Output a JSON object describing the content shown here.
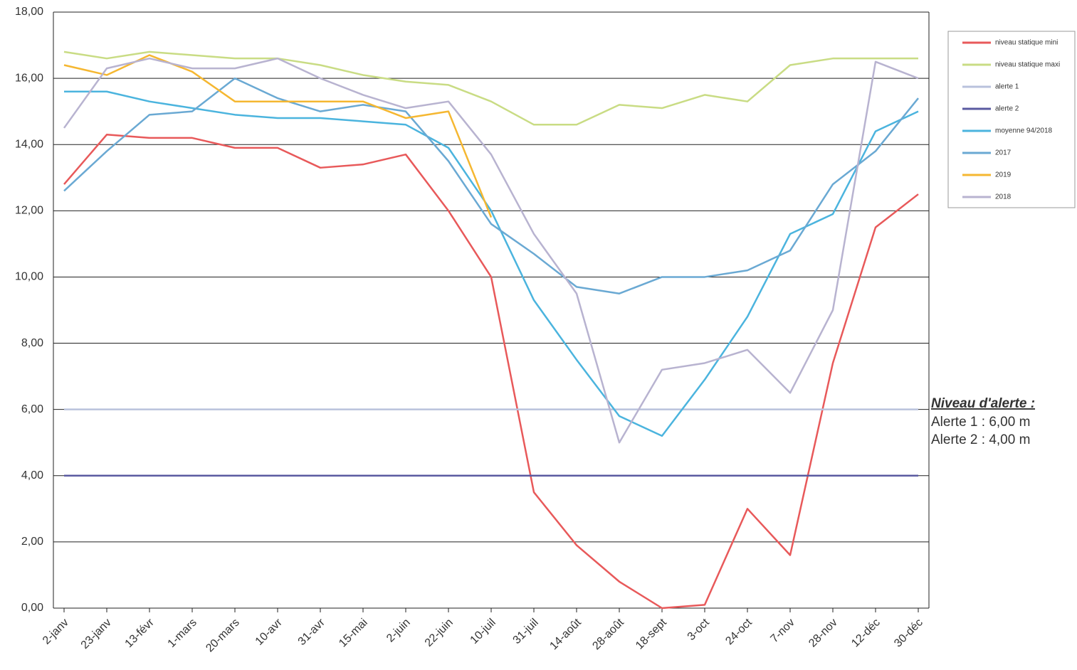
{
  "chart_data": {
    "type": "line",
    "categories": [
      "2-janv",
      "23-janv",
      "13-févr",
      "1-mars",
      "20-mars",
      "10-avr",
      "31-avr",
      "15-mai",
      "2-juin",
      "22-juin",
      "10-juil",
      "31-juil",
      "14-août",
      "28-août",
      "18-sept",
      "3-oct",
      "24-oct",
      "7-nov",
      "28-nov",
      "12-déc",
      "30-déc"
    ],
    "series": [
      {
        "name": "niveau statique mini",
        "color": "#e8595a",
        "values": [
          12.8,
          14.3,
          14.2,
          14.2,
          13.9,
          13.9,
          13.3,
          13.4,
          13.7,
          12.0,
          10.0,
          3.5,
          1.9,
          0.8,
          0.0,
          0.1,
          3.0,
          1.6,
          7.4,
          11.5,
          12.5
        ]
      },
      {
        "name": "niveau statique maxi",
        "color": "#c9dc84",
        "values": [
          16.8,
          16.6,
          16.8,
          16.7,
          16.6,
          16.6,
          16.4,
          16.1,
          15.9,
          15.8,
          15.3,
          14.6,
          14.6,
          15.2,
          15.1,
          15.5,
          15.3,
          16.4,
          16.6,
          16.6,
          16.6
        ]
      },
      {
        "name": "alerte 1",
        "color": "#b9c2dc",
        "values": [
          6,
          6,
          6,
          6,
          6,
          6,
          6,
          6,
          6,
          6,
          6,
          6,
          6,
          6,
          6,
          6,
          6,
          6,
          6,
          6,
          6
        ]
      },
      {
        "name": "alerte 2",
        "color": "#5a5aa0",
        "values": [
          4,
          4,
          4,
          4,
          4,
          4,
          4,
          4,
          4,
          4,
          4,
          4,
          4,
          4,
          4,
          4,
          4,
          4,
          4,
          4,
          4
        ]
      },
      {
        "name": "moyenne 94/2018",
        "color": "#4bb4de",
        "values": [
          15.6,
          15.6,
          15.3,
          15.1,
          14.9,
          14.8,
          14.8,
          14.7,
          14.6,
          13.9,
          12.0,
          9.3,
          7.5,
          5.8,
          5.2,
          6.9,
          8.8,
          11.3,
          11.9,
          14.4,
          15.0
        ]
      },
      {
        "name": "2017",
        "color": "#6aa9d3",
        "values": [
          12.6,
          13.8,
          14.9,
          15.0,
          16.0,
          15.4,
          15.0,
          15.2,
          15.0,
          13.5,
          11.6,
          10.7,
          9.7,
          9.5,
          10.0,
          10.0,
          10.2,
          10.8,
          12.8,
          13.8,
          15.4
        ]
      },
      {
        "name": "2019",
        "color": "#f5b731",
        "values": [
          16.4,
          16.1,
          16.7,
          16.2,
          15.3,
          15.3,
          15.3,
          15.3,
          14.8,
          15.0,
          11.8,
          null,
          null,
          null,
          null,
          null,
          null,
          null,
          null,
          null,
          null
        ]
      },
      {
        "name": "2018",
        "color": "#b8b3d0",
        "values": [
          14.5,
          16.3,
          16.6,
          16.3,
          16.3,
          16.6,
          16.0,
          15.5,
          15.1,
          15.3,
          13.7,
          11.3,
          9.5,
          5.0,
          7.2,
          7.4,
          7.8,
          6.5,
          9.0,
          16.5,
          16.0
        ]
      }
    ],
    "ylim": [
      0,
      18
    ],
    "yticks": [
      {
        "value": 0,
        "label": "0,00"
      },
      {
        "value": 2,
        "label": "2,00"
      },
      {
        "value": 4,
        "label": "4,00"
      },
      {
        "value": 6,
        "label": "6,00"
      },
      {
        "value": 8,
        "label": "8,00"
      },
      {
        "value": 10,
        "label": "10,00"
      },
      {
        "value": 12,
        "label": "12,00"
      },
      {
        "value": 14,
        "label": "14,00"
      },
      {
        "value": 16,
        "label": "16,00"
      },
      {
        "value": 18,
        "label": "18,00"
      }
    ],
    "grid": true,
    "legend": "right",
    "annotations": [
      "Niveau d'alerte :",
      "Alerte 1 : 6,00 m",
      "Alerte 2 : 4,00 m"
    ]
  }
}
